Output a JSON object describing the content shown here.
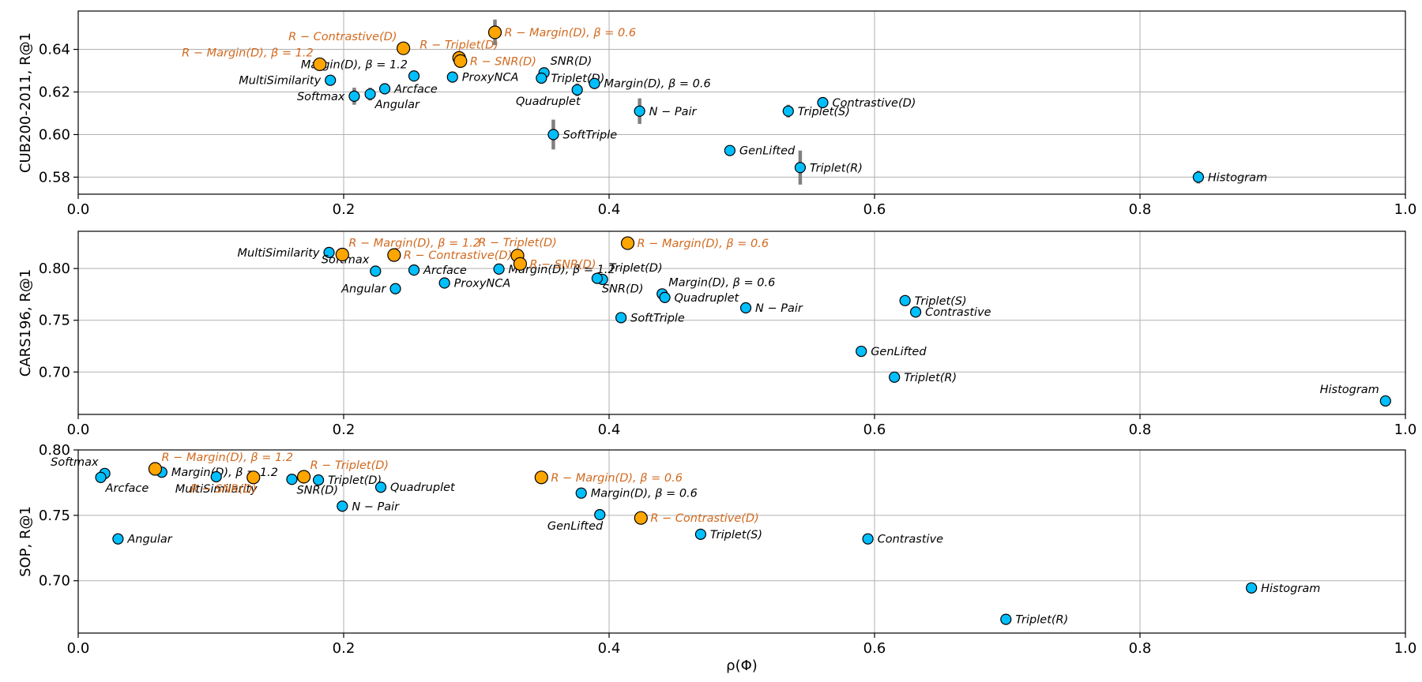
{
  "colors": {
    "baseline": "#00bfff",
    "robust": "#ffa500",
    "robust_label": "#d2691e",
    "baseline_label": "#000000",
    "errorbar": "#808080"
  },
  "xlabel": "ρ(Φ)",
  "chart_data": [
    {
      "type": "scatter",
      "ylabel": "CUB200-2011, R@1",
      "xlim": [
        0,
        1
      ],
      "ylim": [
        0.572,
        0.658
      ],
      "xticks": [
        "0.0",
        "0.2",
        "0.4",
        "0.6",
        "0.8",
        "1.0"
      ],
      "yticks": [
        "0.58",
        "0.60",
        "0.62",
        "0.64"
      ],
      "grid": true,
      "points": [
        {
          "label": "Softmax",
          "x": 0.208,
          "y": 0.618,
          "err": 0.004,
          "group": "baseline",
          "anchor": "left"
        },
        {
          "label": "MultiSimilarity",
          "x": 0.19,
          "y": 0.6255,
          "err": 0.0,
          "group": "baseline",
          "anchor": "left"
        },
        {
          "label": "Angular",
          "x": 0.22,
          "y": 0.619,
          "err": 0.003,
          "group": "baseline",
          "anchor": "below-right"
        },
        {
          "label": "Arcface",
          "x": 0.231,
          "y": 0.6215,
          "err": 0.002,
          "group": "baseline",
          "anchor": "right"
        },
        {
          "label": "Margin(D), β = 1.2",
          "x": 0.253,
          "y": 0.6275,
          "err": 0.0,
          "group": "baseline",
          "anchor": "above-left"
        },
        {
          "label": "ProxyNCA",
          "x": 0.282,
          "y": 0.627,
          "err": 0.0,
          "group": "baseline",
          "anchor": "right"
        },
        {
          "label": "SNR(D)",
          "x": 0.351,
          "y": 0.629,
          "err": 0.0,
          "group": "baseline",
          "anchor": "above-right"
        },
        {
          "label": "Triplet(D)",
          "x": 0.349,
          "y": 0.6265,
          "err": 0.0,
          "group": "baseline",
          "anchor": "right"
        },
        {
          "label": "Quadruplet",
          "x": 0.376,
          "y": 0.621,
          "err": 0.003,
          "group": "baseline",
          "anchor": "below-left"
        },
        {
          "label": "Margin(D), β = 0.6",
          "x": 0.389,
          "y": 0.624,
          "err": 0.0,
          "group": "baseline",
          "anchor": "right"
        },
        {
          "label": "SoftTriple",
          "x": 0.358,
          "y": 0.6,
          "err": 0.007,
          "group": "baseline",
          "anchor": "right"
        },
        {
          "label": "N − Pair",
          "x": 0.423,
          "y": 0.611,
          "err": 0.006,
          "group": "baseline",
          "anchor": "right"
        },
        {
          "label": "GenLifted",
          "x": 0.491,
          "y": 0.5925,
          "err": 0.0,
          "group": "baseline",
          "anchor": "right"
        },
        {
          "label": "Triplet(S)",
          "x": 0.535,
          "y": 0.611,
          "err": 0.003,
          "group": "baseline",
          "anchor": "right"
        },
        {
          "label": "Contrastive(D)",
          "x": 0.561,
          "y": 0.615,
          "err": 0.0,
          "group": "baseline",
          "anchor": "right"
        },
        {
          "label": "Triplet(R)",
          "x": 0.544,
          "y": 0.5845,
          "err": 0.008,
          "group": "baseline",
          "anchor": "right"
        },
        {
          "label": "Histogram",
          "x": 0.844,
          "y": 0.58,
          "err": 0.003,
          "group": "baseline",
          "anchor": "right"
        },
        {
          "label": "R − Margin(D), β = 1.2",
          "x": 0.182,
          "y": 0.633,
          "err": 0.0,
          "group": "robust",
          "anchor": "above-left"
        },
        {
          "label": "R − Contrastive(D)",
          "x": 0.245,
          "y": 0.6405,
          "err": 0.0,
          "group": "robust",
          "anchor": "above-left"
        },
        {
          "label": "R − Triplet(D)",
          "x": 0.287,
          "y": 0.636,
          "err": 0.0,
          "group": "robust",
          "anchor": "above-center"
        },
        {
          "label": "R − SNR(D)",
          "x": 0.288,
          "y": 0.6345,
          "err": 0.0,
          "group": "robust",
          "anchor": "right"
        },
        {
          "label": "R − Margin(D), β = 0.6",
          "x": 0.314,
          "y": 0.648,
          "err": 0.006,
          "group": "robust",
          "anchor": "right"
        }
      ]
    },
    {
      "type": "scatter",
      "ylabel": "CARS196, R@1",
      "xlim": [
        0,
        1
      ],
      "ylim": [
        0.659,
        0.836
      ],
      "xticks": [
        "0.0",
        "0.2",
        "0.4",
        "0.6",
        "0.8",
        "1.0"
      ],
      "yticks": [
        "0.70",
        "0.75",
        "0.80"
      ],
      "grid": true,
      "points": [
        {
          "label": "MultiSimilarity",
          "x": 0.189,
          "y": 0.8155,
          "err": 0.0,
          "group": "baseline",
          "anchor": "left"
        },
        {
          "label": "Softmax",
          "x": 0.224,
          "y": 0.7975,
          "err": 0.0,
          "group": "baseline",
          "anchor": "above-left"
        },
        {
          "label": "Angular",
          "x": 0.239,
          "y": 0.7805,
          "err": 0.0,
          "group": "baseline",
          "anchor": "left"
        },
        {
          "label": "Arcface",
          "x": 0.253,
          "y": 0.7985,
          "err": 0.0,
          "group": "baseline",
          "anchor": "right"
        },
        {
          "label": "ProxyNCA",
          "x": 0.276,
          "y": 0.786,
          "err": 0.0,
          "group": "baseline",
          "anchor": "right"
        },
        {
          "label": "Margin(D), β = 1.2",
          "x": 0.317,
          "y": 0.7995,
          "err": 0.0,
          "group": "baseline",
          "anchor": "right"
        },
        {
          "label": "Triplet(D)",
          "x": 0.395,
          "y": 0.7895,
          "err": 0.0,
          "group": "baseline",
          "anchor": "above-right"
        },
        {
          "label": "SNR(D)",
          "x": 0.391,
          "y": 0.7905,
          "err": 0.0,
          "group": "baseline",
          "anchor": "below-right"
        },
        {
          "label": "Margin(D), β = 0.6",
          "x": 0.44,
          "y": 0.7755,
          "err": 0.0,
          "group": "baseline",
          "anchor": "above-right"
        },
        {
          "label": "Quadruplet",
          "x": 0.442,
          "y": 0.772,
          "err": 0.0,
          "group": "baseline",
          "anchor": "right"
        },
        {
          "label": "SoftTriple",
          "x": 0.409,
          "y": 0.7525,
          "err": 0.0,
          "group": "baseline",
          "anchor": "right"
        },
        {
          "label": "N − Pair",
          "x": 0.503,
          "y": 0.762,
          "err": 0.0,
          "group": "baseline",
          "anchor": "right"
        },
        {
          "label": "Triplet(S)",
          "x": 0.623,
          "y": 0.769,
          "err": 0.0,
          "group": "baseline",
          "anchor": "right"
        },
        {
          "label": "Contrastive",
          "x": 0.631,
          "y": 0.758,
          "err": 0.0,
          "group": "baseline",
          "anchor": "right"
        },
        {
          "label": "GenLifted",
          "x": 0.59,
          "y": 0.72,
          "err": 0.0,
          "group": "baseline",
          "anchor": "right"
        },
        {
          "label": "Triplet(R)",
          "x": 0.615,
          "y": 0.695,
          "err": 0.0,
          "group": "baseline",
          "anchor": "right"
        },
        {
          "label": "Histogram",
          "x": 0.985,
          "y": 0.672,
          "err": 0.0,
          "group": "baseline",
          "anchor": "above-left"
        },
        {
          "label": "R − Margin(D), β = 1.2",
          "x": 0.199,
          "y": 0.8135,
          "err": 0.0,
          "group": "robust",
          "anchor": "above-right"
        },
        {
          "label": "R − Contrastive(D)",
          "x": 0.238,
          "y": 0.813,
          "err": 0.0,
          "group": "robust",
          "anchor": "right"
        },
        {
          "label": "R − Triplet(D)",
          "x": 0.331,
          "y": 0.8125,
          "err": 0.0,
          "group": "robust",
          "anchor": "above-center"
        },
        {
          "label": "R − SNR(D)",
          "x": 0.333,
          "y": 0.8045,
          "err": 0.0,
          "group": "robust",
          "anchor": "right"
        },
        {
          "label": "R − Margin(D), β = 0.6",
          "x": 0.414,
          "y": 0.8245,
          "err": 0.0,
          "group": "robust",
          "anchor": "right"
        }
      ]
    },
    {
      "type": "scatter",
      "ylabel": "SOP, R@1",
      "xlabel": "ρ(Φ)",
      "xlim": [
        0,
        1
      ],
      "ylim": [
        0.66,
        0.8
      ],
      "xticks": [
        "0.0",
        "0.2",
        "0.4",
        "0.6",
        "0.8",
        "1.0"
      ],
      "yticks": [
        "0.70",
        "0.75",
        "0.80"
      ],
      "grid": true,
      "points": [
        {
          "label": "Softmax",
          "x": 0.02,
          "y": 0.782,
          "err": 0.0,
          "group": "baseline",
          "anchor": "above-left"
        },
        {
          "label": "Arcface",
          "x": 0.017,
          "y": 0.779,
          "err": 0.0,
          "group": "baseline",
          "anchor": "below-right"
        },
        {
          "label": "Margin(D), β = 1.2",
          "x": 0.063,
          "y": 0.783,
          "err": 0.0,
          "group": "baseline",
          "anchor": "right"
        },
        {
          "label": "MultiSimilarity",
          "x": 0.104,
          "y": 0.7795,
          "err": 0.0,
          "group": "baseline",
          "anchor": "below-center"
        },
        {
          "label": "SNR(D)",
          "x": 0.161,
          "y": 0.7775,
          "err": 0.0,
          "group": "baseline",
          "anchor": "below-right"
        },
        {
          "label": "Triplet(D)",
          "x": 0.181,
          "y": 0.777,
          "err": 0.0,
          "group": "baseline",
          "anchor": "right"
        },
        {
          "label": "Quadruplet",
          "x": 0.228,
          "y": 0.7715,
          "err": 0.0,
          "group": "baseline",
          "anchor": "right"
        },
        {
          "label": "N − Pair",
          "x": 0.199,
          "y": 0.757,
          "err": 0.0,
          "group": "baseline",
          "anchor": "right"
        },
        {
          "label": "Angular",
          "x": 0.03,
          "y": 0.732,
          "err": 0.0,
          "group": "baseline",
          "anchor": "right"
        },
        {
          "label": "Margin(D), β = 0.6",
          "x": 0.379,
          "y": 0.767,
          "err": 0.0,
          "group": "baseline",
          "anchor": "right"
        },
        {
          "label": "GenLifted",
          "x": 0.393,
          "y": 0.7505,
          "err": 0.0,
          "group": "baseline",
          "anchor": "below-left"
        },
        {
          "label": "Triplet(S)",
          "x": 0.469,
          "y": 0.7355,
          "err": 0.0,
          "group": "baseline",
          "anchor": "right"
        },
        {
          "label": "Contrastive",
          "x": 0.595,
          "y": 0.732,
          "err": 0.0,
          "group": "baseline",
          "anchor": "right"
        },
        {
          "label": "Histogram",
          "x": 0.884,
          "y": 0.6945,
          "err": 0.0,
          "group": "baseline",
          "anchor": "right"
        },
        {
          "label": "Triplet(R)",
          "x": 0.699,
          "y": 0.6705,
          "err": 0.0,
          "group": "baseline",
          "anchor": "right"
        },
        {
          "label": "R − Margin(D), β = 1.2",
          "x": 0.058,
          "y": 0.7855,
          "err": 0.0,
          "group": "robust",
          "anchor": "above-right"
        },
        {
          "label": "R − Triplet(D)",
          "x": 0.17,
          "y": 0.7795,
          "err": 0.0,
          "group": "robust",
          "anchor": "above-right"
        },
        {
          "label": "R − SNR(D)",
          "x": 0.132,
          "y": 0.779,
          "err": 0.0,
          "group": "robust",
          "anchor": "below-left"
        },
        {
          "label": "R − Margin(D), β = 0.6",
          "x": 0.349,
          "y": 0.779,
          "err": 0.0,
          "group": "robust",
          "anchor": "right"
        },
        {
          "label": "R − Contrastive(D)",
          "x": 0.424,
          "y": 0.748,
          "err": 0.0,
          "group": "robust",
          "anchor": "right"
        }
      ]
    }
  ]
}
